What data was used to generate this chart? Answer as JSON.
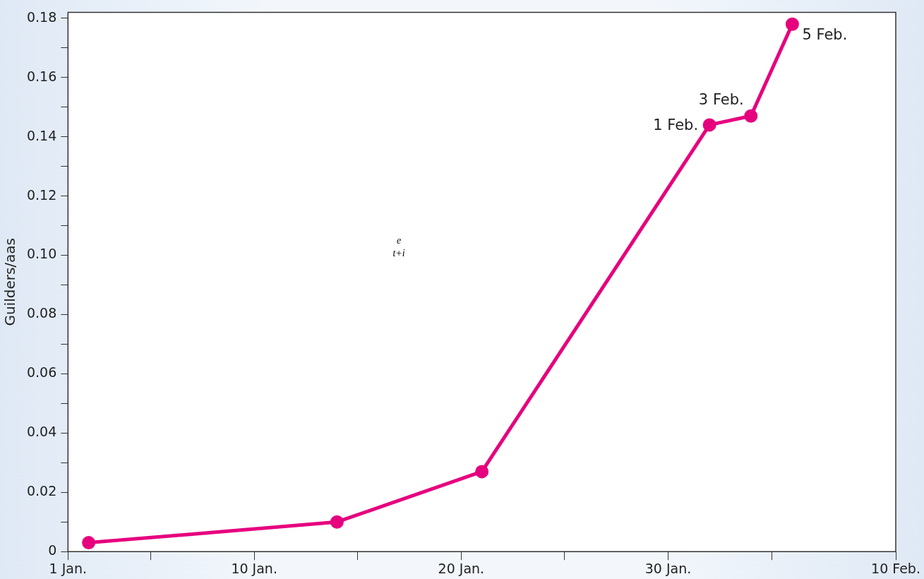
{
  "chart_data": {
    "type": "line",
    "ylabel": "Guilders/aas",
    "x": [
      "--01-02",
      "--01-14",
      "--01-21",
      "--02-01",
      "--02-03",
      "--02-05"
    ],
    "series": [
      {
        "color": "#e6007e",
        "values": [
          0.003,
          0.01,
          0.027,
          0.144,
          0.147,
          0.178
        ]
      }
    ],
    "xlim": [
      "--01-01",
      "--02-10"
    ],
    "xticks": [
      {
        "value": "--01-01",
        "label": "1 Jan."
      },
      {
        "value": "--01-05",
        "label": null
      },
      {
        "value": "--01-10",
        "label": "10 Jan."
      },
      {
        "value": "--01-15",
        "label": null
      },
      {
        "value": "--01-20",
        "label": "20 Jan."
      },
      {
        "value": "--01-25",
        "label": null
      },
      {
        "value": "--01-30",
        "label": "30 Jan."
      },
      {
        "value": "--02-04",
        "label": null
      },
      {
        "value": "--02-10",
        "label": "10 Feb."
      }
    ],
    "ylim": [
      0,
      0.182
    ],
    "yticks": [
      0,
      {
        "value": 0.01,
        "label": null
      },
      {
        "value": 0.02,
        "label": "0.02"
      },
      {
        "value": 0.03,
        "label": null
      },
      {
        "value": 0.04,
        "label": "0.04"
      },
      {
        "value": 0.05,
        "label": null
      },
      {
        "value": 0.06,
        "label": "0.06"
      },
      {
        "value": 0.07,
        "label": null
      },
      {
        "value": 0.08,
        "label": "0.08"
      },
      {
        "value": 0.09,
        "label": null
      },
      {
        "value": 0.1,
        "label": "0.10"
      },
      {
        "value": 0.11,
        "label": null
      },
      {
        "value": 0.12,
        "label": "0.12"
      },
      {
        "value": 0.13,
        "label": null
      },
      {
        "value": 0.14,
        "label": "0.14"
      },
      {
        "value": 0.15,
        "label": null
      },
      {
        "value": 0.16,
        "label": "0.16"
      },
      {
        "value": 0.17,
        "label": null
      },
      {
        "value": 0.18,
        "label": "0.18"
      }
    ],
    "annotations": [
      {
        "text": "1 Feb.",
        "x": "--02-01",
        "y": 0.144
      },
      {
        "text": "3 Feb.",
        "x": "--02-03",
        "y": 0.147
      },
      {
        "text": "5 Feb.",
        "x": "--02-05",
        "y": 0.178
      },
      "e",
      "t+i"
    ],
    "marker": "circle",
    "line_style": "solid",
    "grid": false,
    "legend": false
  }
}
